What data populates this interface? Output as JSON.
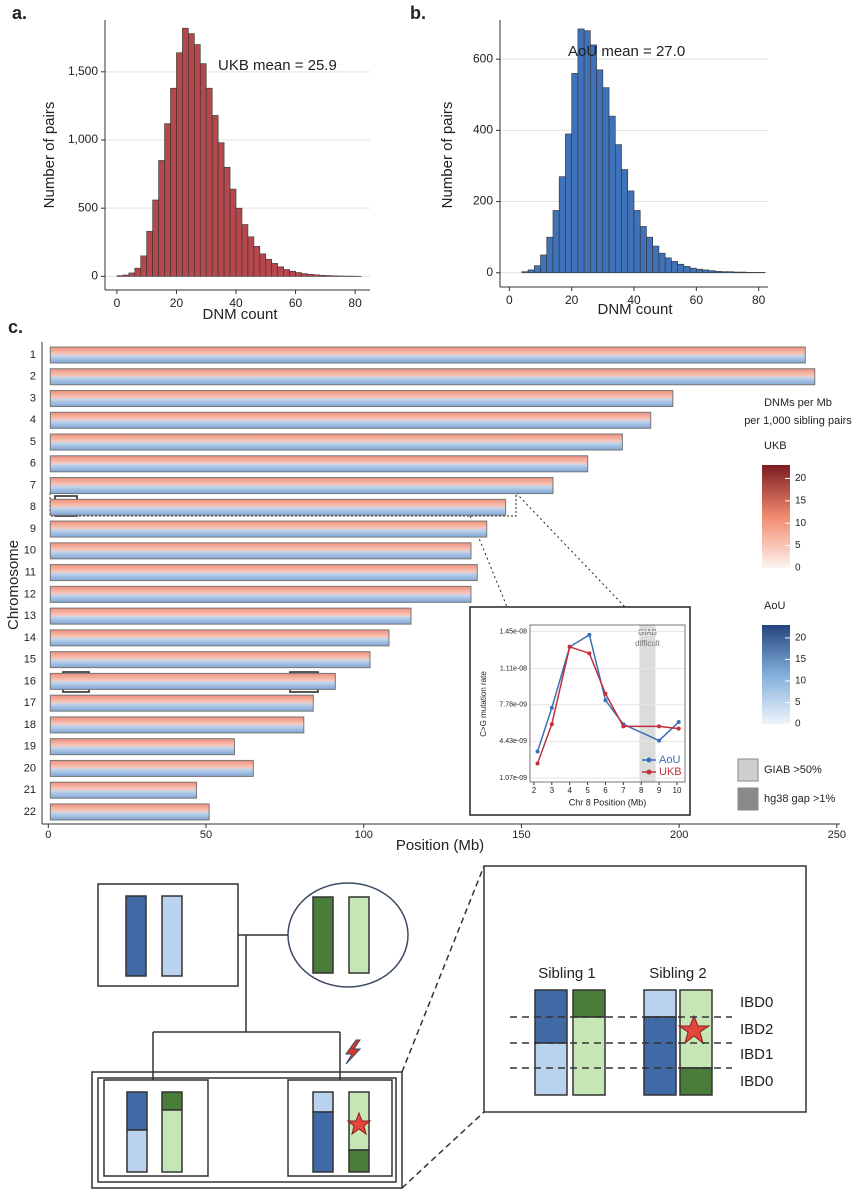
{
  "panel_labels": [
    "a.",
    "b.",
    "c."
  ],
  "chart_data": [
    {
      "type": "histogram",
      "annotation": "UKB mean = 25.9",
      "xlabel": "DNM count",
      "ylabel": "Number of pairs",
      "color": "#b5474d",
      "bins": [
        0,
        2,
        4,
        6,
        8,
        10,
        12,
        14,
        16,
        18,
        20,
        22,
        24,
        26,
        28,
        30,
        32,
        34,
        36,
        38,
        40,
        42,
        44,
        46,
        48,
        50,
        52,
        54,
        56,
        58,
        60,
        62,
        64,
        66,
        68,
        70,
        72,
        74,
        76,
        78,
        80,
        82
      ],
      "counts": [
        5,
        10,
        25,
        60,
        150,
        330,
        560,
        850,
        1120,
        1380,
        1640,
        1820,
        1780,
        1700,
        1560,
        1380,
        1180,
        980,
        800,
        640,
        500,
        380,
        290,
        220,
        165,
        125,
        95,
        70,
        50,
        38,
        28,
        20,
        15,
        11,
        8,
        6,
        4,
        3,
        2,
        2,
        1
      ],
      "xlim": [
        -4,
        85
      ],
      "ylim": [
        -100,
        1880
      ],
      "xticks": [
        0,
        20,
        40,
        60,
        80
      ],
      "yticks": [
        0,
        500,
        {
          "value": 1000,
          "label": "1,000"
        },
        {
          "value": 1500,
          "label": "1,500"
        }
      ],
      "grid": true
    },
    {
      "type": "histogram",
      "annotation": "AoU mean = 27.0",
      "xlabel": "DNM count",
      "ylabel": "Number of pairs",
      "color": "#3f72b8",
      "bins": [
        4,
        6,
        8,
        10,
        12,
        14,
        16,
        18,
        20,
        22,
        24,
        26,
        28,
        30,
        32,
        34,
        36,
        38,
        40,
        42,
        44,
        46,
        48,
        50,
        52,
        54,
        56,
        58,
        60,
        62,
        64,
        66,
        68,
        70,
        72,
        74,
        76,
        78,
        80,
        82
      ],
      "counts": [
        3,
        8,
        20,
        50,
        100,
        175,
        270,
        390,
        560,
        685,
        680,
        640,
        570,
        520,
        440,
        360,
        290,
        230,
        175,
        130,
        100,
        75,
        55,
        42,
        32,
        24,
        18,
        13,
        10,
        8,
        6,
        4,
        3,
        3,
        2,
        2,
        1,
        1,
        1
      ],
      "xlim": [
        -3,
        83
      ],
      "ylim": [
        -40,
        710
      ],
      "xticks": [
        0,
        20,
        40,
        60,
        80
      ],
      "yticks": [
        0,
        200,
        400,
        600
      ],
      "grid": true
    },
    {
      "type": "chromosome-heatmap",
      "xlabel": "Position (Mb)",
      "ylabel": "Chromosome",
      "categories": [
        "1",
        "2",
        "3",
        "4",
        "5",
        "6",
        "7",
        "8",
        "9",
        "10",
        "11",
        "12",
        "13",
        "14",
        "15",
        "16",
        "17",
        "18",
        "19",
        "20",
        "21",
        "22"
      ],
      "lengths": [
        240,
        243,
        198,
        191,
        182,
        171,
        160,
        145,
        139,
        134,
        136,
        134,
        115,
        108,
        102,
        91,
        84,
        81,
        59,
        65,
        47,
        51
      ],
      "xlim": [
        -2,
        251
      ],
      "xticks": [
        0,
        50,
        100,
        150,
        200,
        250
      ],
      "legend_title": [
        "DNMs per Mb",
        "per 1,000 sibling pairs"
      ],
      "colorbars": [
        {
          "name": "UKB",
          "colors": [
            "#fdf3f0",
            "#f08a6e",
            "#7b1c20"
          ],
          "lim": [
            0,
            23
          ],
          "ticks": [
            0,
            5,
            10,
            15,
            20
          ]
        },
        {
          "name": "AoU",
          "colors": [
            "#eef4fb",
            "#82aedb",
            "#25457e"
          ],
          "lim": [
            0,
            23
          ],
          "ticks": [
            0,
            5,
            10,
            15,
            20
          ]
        }
      ],
      "legend": [
        {
          "label": "GIAB >50%",
          "color": "#cfcfcf"
        },
        {
          "label": "hg38 gap >1%",
          "color": "#8a8a8a"
        }
      ]
    },
    {
      "type": "line",
      "xlabel": "Chr 8 Position (Mb)",
      "ylabel": "C>G mutation rate",
      "annotation": [
        "GIAB",
        "difficult"
      ],
      "shaded_region": [
        7.9,
        8.8
      ],
      "x": [
        2.2,
        3,
        4,
        5.1,
        6,
        7,
        9,
        10.1
      ],
      "series": [
        {
          "name": "AoU",
          "color": "#3b6fb6",
          "values": [
            3.5e-09,
            7.5e-09,
            1.31e-08,
            1.42e-08,
            8.2e-09,
            6e-09,
            4.5e-09,
            6.2e-09
          ]
        },
        {
          "name": "UKB",
          "color": "#c0303a",
          "values": [
            2.4e-09,
            6e-09,
            1.31e-08,
            1.25e-08,
            8.8e-09,
            5.8e-09,
            5.8e-09,
            5.6e-09
          ]
        }
      ],
      "xlim": [
        1.78,
        10.45
      ],
      "ylim": [
        7e-10,
        1.51e-08
      ],
      "xticks": [
        2,
        3,
        4,
        5,
        6,
        7,
        8,
        9,
        10
      ],
      "yticks": [
        {
          "value": 1.07e-09,
          "label": "1.07e-09"
        },
        {
          "value": 4.43e-09,
          "label": "4.43e-09"
        },
        {
          "value": 7.78e-09,
          "label": "7.78e-09"
        },
        {
          "value": 1.11e-08,
          "label": "1.11e-08"
        },
        {
          "value": 1.45e-08,
          "label": "1.45e-08"
        }
      ],
      "grid": true
    }
  ],
  "diagram": {
    "sibling_labels": [
      "Sibling 1",
      "Sibling 2"
    ],
    "ibd_labels": [
      "IBD0",
      "IBD2",
      "IBD1",
      "IBD0"
    ]
  }
}
